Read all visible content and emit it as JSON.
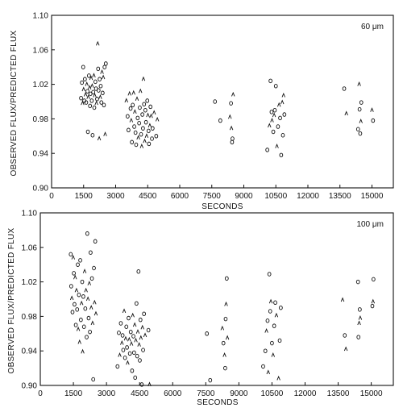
{
  "chart_data": [
    {
      "type": "scatter",
      "panel_label": "60 μm",
      "xlabel": "SECONDS",
      "ylabel": "OBSERVED FLUX/PREDICTED FLUX",
      "xlim": [
        0,
        16000
      ],
      "ylim": [
        0.9,
        1.1
      ],
      "x_ticks": [
        0,
        1500,
        3000,
        4500,
        6000,
        7500,
        9000,
        10500,
        12000,
        13500,
        15000
      ],
      "y_ticks": [
        "0.90",
        "0.94",
        "0.98",
        "1.02",
        "1.06",
        "1.10"
      ],
      "y_tick_values": [
        0.9,
        0.94,
        0.98,
        1.02,
        1.06,
        1.1
      ],
      "grid": false,
      "points": [
        [
          1380,
          1.004
        ],
        [
          1420,
          1.022
        ],
        [
          1450,
          0.998
        ],
        [
          1480,
          1.04
        ],
        [
          1500,
          1.014
        ],
        [
          1530,
          1.001
        ],
        [
          1560,
          1.026
        ],
        [
          1590,
          1.008
        ],
        [
          1620,
          0.999
        ],
        [
          1650,
          1.02
        ],
        [
          1680,
          1.012
        ],
        [
          1700,
          0.965
        ],
        [
          1720,
          1.005
        ],
        [
          1750,
          1.03
        ],
        [
          1780,
          1.016
        ],
        [
          1800,
          0.995
        ],
        [
          1820,
          1.009
        ],
        [
          1850,
          1.027
        ],
        [
          1880,
          1.001
        ],
        [
          1900,
          1.018
        ],
        [
          1920,
          0.961
        ],
        [
          1950,
          1.011
        ],
        [
          1980,
          1.03
        ],
        [
          2000,
          0.993
        ],
        [
          2020,
          1.007
        ],
        [
          2050,
          1.023
        ],
        [
          2080,
          1.015
        ],
        [
          2100,
          0.998
        ],
        [
          2130,
          1.003
        ],
        [
          2160,
          1.067
        ],
        [
          2180,
          1.038
        ],
        [
          2200,
          1.013
        ],
        [
          2230,
          0.957
        ],
        [
          2250,
          1.026
        ],
        [
          2280,
          1.005
        ],
        [
          2300,
          1.018
        ],
        [
          2330,
          0.999
        ],
        [
          2360,
          1.034
        ],
        [
          2390,
          1.01
        ],
        [
          2420,
          1.028
        ],
        [
          2450,
          0.996
        ],
        [
          2480,
          1.04
        ],
        [
          2510,
          0.962
        ],
        [
          2540,
          1.044
        ],
        [
          3500,
          1.001
        ],
        [
          3560,
          0.983
        ],
        [
          3600,
          0.967
        ],
        [
          3650,
          1.009
        ],
        [
          3700,
          0.992
        ],
        [
          3730,
          0.978
        ],
        [
          3760,
          0.953
        ],
        [
          3800,
          0.996
        ],
        [
          3840,
          1.01
        ],
        [
          3870,
          0.971
        ],
        [
          3900,
          0.988
        ],
        [
          3930,
          0.964
        ],
        [
          3960,
          0.95
        ],
        [
          4000,
          1.003
        ],
        [
          4030,
          0.981
        ],
        [
          4060,
          0.958
        ],
        [
          4100,
          0.975
        ],
        [
          4130,
          0.993
        ],
        [
          4160,
          1.012
        ],
        [
          4190,
          0.962
        ],
        [
          4220,
          0.948
        ],
        [
          4250,
          0.985
        ],
        [
          4280,
          0.969
        ],
        [
          4300,
          1.026
        ],
        [
          4330,
          0.997
        ],
        [
          4360,
          0.954
        ],
        [
          4390,
          0.99
        ],
        [
          4420,
          0.976
        ],
        [
          4450,
          0.96
        ],
        [
          4480,
          1.001
        ],
        [
          4510,
          0.984
        ],
        [
          4540,
          0.966
        ],
        [
          4560,
          0.951
        ],
        [
          4600,
          0.972
        ],
        [
          4630,
          0.994
        ],
        [
          4660,
          0.983
        ],
        [
          4700,
          0.957
        ],
        [
          4730,
          0.969
        ],
        [
          4800,
          0.987
        ],
        [
          4900,
          0.96
        ],
        [
          4950,
          0.979
        ],
        [
          7650,
          1.0
        ],
        [
          7900,
          0.978
        ],
        [
          8350,
          0.982
        ],
        [
          8400,
          0.998
        ],
        [
          8420,
          0.969
        ],
        [
          8450,
          0.953
        ],
        [
          8470,
          0.957
        ],
        [
          8500,
          1.008
        ],
        [
          10100,
          0.944
        ],
        [
          10200,
          0.972
        ],
        [
          10250,
          1.024
        ],
        [
          10300,
          0.988
        ],
        [
          10320,
          0.978
        ],
        [
          10380,
          0.965
        ],
        [
          10420,
          0.984
        ],
        [
          10450,
          0.99
        ],
        [
          10500,
          1.018
        ],
        [
          10550,
          0.948
        ],
        [
          10600,
          0.971
        ],
        [
          10650,
          0.996
        ],
        [
          10700,
          0.981
        ],
        [
          10750,
          0.938
        ],
        [
          10800,
          0.999
        ],
        [
          10830,
          0.961
        ],
        [
          10860,
          1.007
        ],
        [
          10900,
          0.985
        ],
        [
          13700,
          1.015
        ],
        [
          13800,
          0.986
        ],
        [
          14350,
          0.968
        ],
        [
          14400,
          1.02
        ],
        [
          14420,
          0.991
        ],
        [
          14450,
          0.963
        ],
        [
          14480,
          0.977
        ],
        [
          14500,
          0.999
        ],
        [
          15000,
          0.99
        ],
        [
          15050,
          0.978
        ]
      ]
    },
    {
      "type": "scatter",
      "panel_label": "100 μm",
      "xlabel": "SECONDS",
      "ylabel": "OBSERVED FLUX/PREDICTED FLUX",
      "xlim": [
        0,
        16000
      ],
      "ylim": [
        0.9,
        1.1
      ],
      "x_ticks": [
        0,
        1500,
        3000,
        4500,
        6000,
        7500,
        9000,
        10500,
        12000,
        13500,
        15000
      ],
      "y_ticks": [
        "0.90",
        "0.94",
        "0.98",
        "1.02",
        "1.06",
        "1.10"
      ],
      "y_tick_values": [
        0.9,
        0.94,
        0.98,
        1.02,
        1.06,
        1.1
      ],
      "grid": false,
      "points": [
        [
          1380,
          1.052
        ],
        [
          1400,
          1.015
        ],
        [
          1430,
          1.001
        ],
        [
          1460,
          0.985
        ],
        [
          1490,
          1.048
        ],
        [
          1520,
          1.03
        ],
        [
          1550,
          0.994
        ],
        [
          1580,
          1.025
        ],
        [
          1610,
          0.97
        ],
        [
          1640,
          1.01
        ],
        [
          1670,
          0.988
        ],
        [
          1700,
          1.04
        ],
        [
          1720,
          0.965
        ],
        [
          1750,
          1.005
        ],
        [
          1780,
          0.95
        ],
        [
          1810,
          1.045
        ],
        [
          1840,
          0.976
        ],
        [
          1870,
          0.995
        ],
        [
          1900,
          1.02
        ],
        [
          1920,
          0.939
        ],
        [
          1950,
          1.003
        ],
        [
          1980,
          0.968
        ],
        [
          2010,
          1.032
        ],
        [
          2040,
          0.989
        ],
        [
          2070,
          1.01
        ],
        [
          2100,
          0.956
        ],
        [
          2130,
          1.076
        ],
        [
          2160,
          1.0
        ],
        [
          2190,
          0.978
        ],
        [
          2220,
          1.018
        ],
        [
          2250,
          0.962
        ],
        [
          2280,
          1.054
        ],
        [
          2310,
          0.99
        ],
        [
          2340,
          1.024
        ],
        [
          2370,
          0.972
        ],
        [
          2400,
          0.907
        ],
        [
          2430,
          1.036
        ],
        [
          2460,
          0.996
        ],
        [
          2490,
          1.067
        ],
        [
          2520,
          0.983
        ],
        [
          3500,
          0.922
        ],
        [
          3560,
          0.961
        ],
        [
          3600,
          0.935
        ],
        [
          3650,
          0.972
        ],
        [
          3700,
          0.949
        ],
        [
          3730,
          0.958
        ],
        [
          3760,
          0.941
        ],
        [
          3800,
          0.986
        ],
        [
          3840,
          0.932
        ],
        [
          3870,
          0.954
        ],
        [
          3900,
          0.968
        ],
        [
          3930,
          0.944
        ],
        [
          3960,
          0.926
        ],
        [
          4000,
          0.978
        ],
        [
          4030,
          0.953
        ],
        [
          4060,
          0.937
        ],
        [
          4100,
          0.962
        ],
        [
          4130,
          0.948
        ],
        [
          4160,
          0.917
        ],
        [
          4190,
          0.981
        ],
        [
          4220,
          0.957
        ],
        [
          4250,
          0.938
        ],
        [
          4280,
          0.97
        ],
        [
          4300,
          0.909
        ],
        [
          4330,
          0.952
        ],
        [
          4360,
          0.995
        ],
        [
          4390,
          0.934
        ],
        [
          4420,
          0.962
        ],
        [
          4450,
          1.032
        ],
        [
          4480,
          0.947
        ],
        [
          4510,
          0.929
        ],
        [
          4540,
          0.976
        ],
        [
          4560,
          0.955
        ],
        [
          4600,
          0.901
        ],
        [
          4630,
          0.967
        ],
        [
          4660,
          0.941
        ],
        [
          4700,
          0.983
        ],
        [
          4750,
          0.958
        ],
        [
          4900,
          0.964
        ],
        [
          4950,
          0.901
        ],
        [
          7700,
          0.906
        ],
        [
          7550,
          0.96
        ],
        [
          8250,
          0.966
        ],
        [
          8300,
          0.949
        ],
        [
          8350,
          0.935
        ],
        [
          8380,
          0.92
        ],
        [
          8400,
          0.977
        ],
        [
          8420,
          0.994
        ],
        [
          8450,
          1.024
        ],
        [
          8480,
          0.955
        ],
        [
          10100,
          0.922
        ],
        [
          10200,
          0.94
        ],
        [
          10250,
          0.963
        ],
        [
          10300,
          0.975
        ],
        [
          10330,
          0.915
        ],
        [
          10380,
          1.029
        ],
        [
          10420,
          0.986
        ],
        [
          10450,
          0.997
        ],
        [
          10500,
          0.949
        ],
        [
          10550,
          0.935
        ],
        [
          10600,
          0.969
        ],
        [
          10650,
          0.996
        ],
        [
          10700,
          0.981
        ],
        [
          10750,
          0.899
        ],
        [
          10800,
          0.908
        ],
        [
          10850,
          0.952
        ],
        [
          10900,
          0.99
        ],
        [
          13700,
          0.999
        ],
        [
          13800,
          0.958
        ],
        [
          13850,
          0.942
        ],
        [
          14400,
          1.02
        ],
        [
          14420,
          0.956
        ],
        [
          14450,
          0.972
        ],
        [
          14480,
          0.988
        ],
        [
          14500,
          0.978
        ],
        [
          15050,
          0.992
        ],
        [
          15100,
          1.023
        ],
        [
          15080,
          0.997
        ]
      ]
    }
  ]
}
